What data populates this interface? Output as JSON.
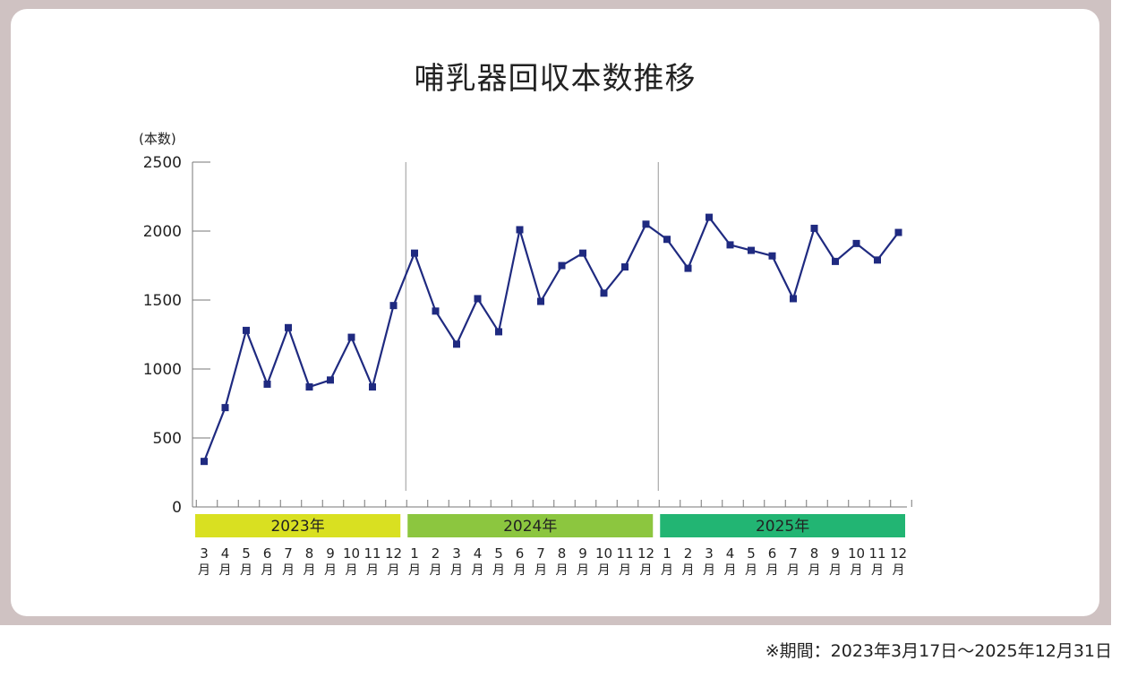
{
  "footnote": "※期間：2023年3月17日〜2025年12月31日",
  "chart_data": {
    "type": "line",
    "title": "哺乳器回収本数推移",
    "ylabel": "(本数)",
    "xlabel": "",
    "ylim": [
      0,
      2500
    ],
    "yticks": [
      0,
      500,
      1000,
      1500,
      2000,
      2500
    ],
    "grid": false,
    "legend": "none",
    "line_color": "#1f2a80",
    "month_suffix": "月",
    "years": [
      {
        "label": "2023年",
        "color": "#d9e021",
        "months": 10
      },
      {
        "label": "2024年",
        "color": "#8cc63f",
        "months": 12
      },
      {
        "label": "2025年",
        "color": "#22b573",
        "months": 12
      }
    ],
    "categories": [
      "3",
      "4",
      "5",
      "6",
      "7",
      "8",
      "9",
      "10",
      "11",
      "12",
      "1",
      "2",
      "3",
      "4",
      "5",
      "6",
      "7",
      "8",
      "9",
      "10",
      "11",
      "12",
      "1",
      "2",
      "3",
      "4",
      "5",
      "6",
      "7",
      "8",
      "9",
      "10",
      "11",
      "12"
    ],
    "series": [
      {
        "values": [
          330,
          720,
          1280,
          890,
          1300,
          870,
          920,
          1230,
          870,
          1460,
          1840,
          1420,
          1180,
          1510,
          1270,
          2010,
          1490,
          1750,
          1840,
          1550,
          1740,
          2050,
          1940,
          1730,
          2100,
          1900,
          1860,
          1820,
          1510,
          2020,
          1780,
          1910,
          1790,
          1990
        ]
      }
    ]
  }
}
